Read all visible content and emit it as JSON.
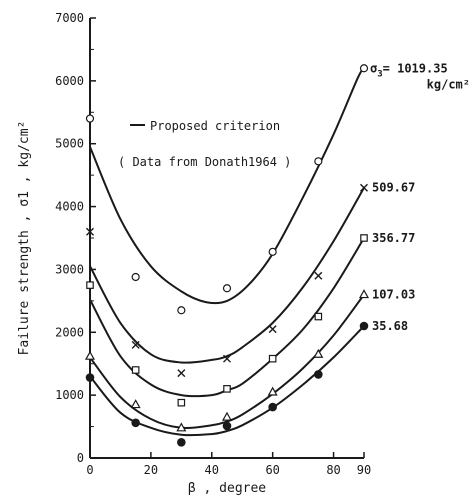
{
  "chart_data": {
    "type": "line",
    "title": "",
    "xlabel": "β , degree",
    "ylabel": "Failure strength , σ1 , kg/cm²",
    "xlim": [
      0,
      90
    ],
    "ylim": [
      0,
      7000
    ],
    "x_ticks": [
      "0",
      "20",
      "40",
      "60",
      "80",
      "90"
    ],
    "x_tick_values": [
      0,
      20,
      40,
      60,
      80,
      90
    ],
    "y_ticks": [
      "0",
      "1000",
      "2000",
      "3000",
      "4000",
      "5000",
      "6000",
      "7000"
    ],
    "y_tick_values": [
      0,
      1000,
      2000,
      3000,
      4000,
      5000,
      6000,
      7000
    ],
    "legend": {
      "line_label": "Proposed criterion",
      "data_note": "( Data from Donath1964 )",
      "placement": "top-left"
    },
    "grid": false,
    "series": [
      {
        "name": "σ3 = 1019.35 kg/cm²",
        "label_prefix": "σ3",
        "label_value": "= 1019.35",
        "label_unit": "kg/cm²",
        "marker": "circle-open",
        "points": [
          [
            0,
            5400
          ],
          [
            15,
            2880
          ],
          [
            30,
            2350
          ],
          [
            45,
            2700
          ],
          [
            60,
            3280
          ],
          [
            75,
            4720
          ],
          [
            90,
            6200
          ]
        ],
        "curve": [
          [
            0,
            4950
          ],
          [
            10,
            3800
          ],
          [
            20,
            3050
          ],
          [
            30,
            2650
          ],
          [
            38,
            2480
          ],
          [
            45,
            2500
          ],
          [
            52,
            2750
          ],
          [
            60,
            3250
          ],
          [
            70,
            4150
          ],
          [
            80,
            5150
          ],
          [
            88,
            6050
          ],
          [
            90,
            6200
          ]
        ]
      },
      {
        "name": "509.67",
        "label_value": "509.67",
        "marker": "cross",
        "points": [
          [
            0,
            3600
          ],
          [
            15,
            1800
          ],
          [
            30,
            1350
          ],
          [
            45,
            1580
          ],
          [
            60,
            2050
          ],
          [
            75,
            2900
          ],
          [
            90,
            4300
          ]
        ],
        "curve": [
          [
            0,
            3050
          ],
          [
            10,
            2150
          ],
          [
            20,
            1650
          ],
          [
            30,
            1520
          ],
          [
            40,
            1560
          ],
          [
            45,
            1620
          ],
          [
            50,
            1760
          ],
          [
            60,
            2150
          ],
          [
            70,
            2720
          ],
          [
            80,
            3450
          ],
          [
            90,
            4300
          ]
        ]
      },
      {
        "name": "356.77",
        "label_value": "356.77",
        "marker": "square-open",
        "points": [
          [
            0,
            2750
          ],
          [
            15,
            1400
          ],
          [
            30,
            880
          ],
          [
            45,
            1100
          ],
          [
            60,
            1580
          ],
          [
            75,
            2250
          ],
          [
            90,
            3500
          ]
        ],
        "curve": [
          [
            0,
            2520
          ],
          [
            10,
            1620
          ],
          [
            20,
            1170
          ],
          [
            30,
            1000
          ],
          [
            40,
            1000
          ],
          [
            45,
            1080
          ],
          [
            50,
            1180
          ],
          [
            60,
            1580
          ],
          [
            70,
            2050
          ],
          [
            80,
            2700
          ],
          [
            90,
            3500
          ]
        ]
      },
      {
        "name": "107.03",
        "label_value": "107.03",
        "marker": "triangle-open",
        "points": [
          [
            0,
            1620
          ],
          [
            15,
            850
          ],
          [
            30,
            480
          ],
          [
            45,
            650
          ],
          [
            60,
            1050
          ],
          [
            75,
            1650
          ],
          [
            90,
            2600
          ]
        ],
        "curve": [
          [
            0,
            1600
          ],
          [
            10,
            970
          ],
          [
            20,
            620
          ],
          [
            30,
            480
          ],
          [
            40,
            520
          ],
          [
            45,
            580
          ],
          [
            50,
            690
          ],
          [
            60,
            1020
          ],
          [
            70,
            1430
          ],
          [
            80,
            1950
          ],
          [
            90,
            2600
          ]
        ]
      },
      {
        "name": "35.68",
        "label_value": "35.68",
        "marker": "circle-filled",
        "points": [
          [
            0,
            1280
          ],
          [
            15,
            560
          ],
          [
            30,
            250
          ],
          [
            45,
            510
          ],
          [
            60,
            810
          ],
          [
            75,
            1330
          ],
          [
            90,
            2100
          ]
        ],
        "curve": [
          [
            0,
            1300
          ],
          [
            10,
            720
          ],
          [
            20,
            480
          ],
          [
            30,
            370
          ],
          [
            40,
            380
          ],
          [
            45,
            430
          ],
          [
            50,
            520
          ],
          [
            60,
            800
          ],
          [
            70,
            1170
          ],
          [
            80,
            1600
          ],
          [
            90,
            2100
          ]
        ]
      }
    ]
  }
}
